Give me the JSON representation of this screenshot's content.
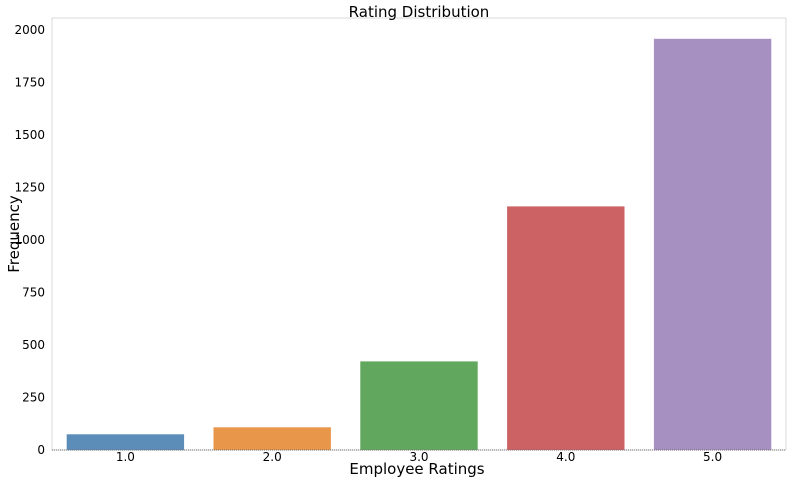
{
  "chart_data": {
    "type": "bar",
    "title": "Rating Distribution",
    "xlabel": "Employee Ratings",
    "ylabel": "Frequency",
    "categories": [
      "1.0",
      "2.0",
      "3.0",
      "4.0",
      "5.0"
    ],
    "values": [
      75,
      108,
      422,
      1160,
      1958
    ],
    "ylim": [
      0,
      2000
    ],
    "yticks": [
      "0",
      "250",
      "500",
      "750",
      "1000",
      "1250",
      "1500",
      "1750",
      "2000"
    ],
    "colors": [
      "#5b8db8",
      "#e8964a",
      "#62a75e",
      "#cc6263",
      "#a690c2"
    ],
    "grid": false,
    "legend": "none"
  }
}
